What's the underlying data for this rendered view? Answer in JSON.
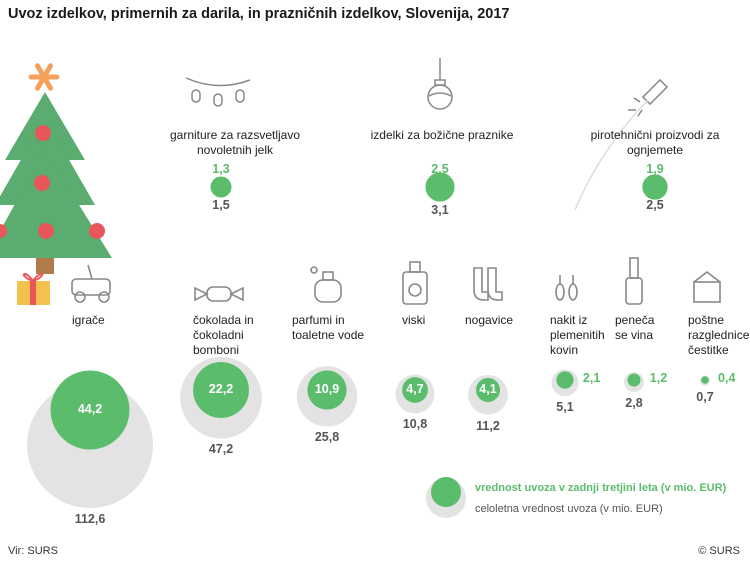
{
  "title": "Uvoz izdelkov, primernih za darila, in prazničnih izdelkov, Slovenija, 2017",
  "source": "Vir: SURS",
  "copyright": "© SURS",
  "colors": {
    "green": "#5bbd6b",
    "grey": "#e3e3e3",
    "tree": "#5aac70",
    "ball": "#e8565a",
    "star": "#f5a05b"
  },
  "legend": {
    "green": "vrednost uvoza v zadnji tretjini leta (v mio. EUR)",
    "grey": "celoletna vrednost uvoza (v mio. EUR)"
  },
  "chart_data": {
    "type": "bubble",
    "title": "Uvoz izdelkov, primernih za darila, in prazničnih izdelkov, Slovenija, 2017",
    "series": [
      {
        "name": "vrednost uvoza v zadnji tretjini leta (v mio. EUR)",
        "color": "#5bbd6b"
      },
      {
        "name": "celoletna vrednost uvoza (v mio. EUR)",
        "color": "#e3e3e3"
      }
    ],
    "top_items": [
      {
        "label": "garniture za razsvetljavo novoletnih jelk",
        "last_third": 1.3,
        "annual": 1.5,
        "icon": "lights-icon"
      },
      {
        "label": "izdelki za božične praznike",
        "last_third": 2.5,
        "annual": 3.1,
        "icon": "ornament-icon"
      },
      {
        "label": "pirotehnični proizvodi za ognjemete",
        "last_third": 1.9,
        "annual": 2.5,
        "icon": "firework-icon"
      }
    ],
    "items": [
      {
        "label": "igrače",
        "last_third": 44.2,
        "annual": 112.6,
        "icon": "toy-car-icon"
      },
      {
        "label": "čokolada in čokoladni bomboni",
        "last_third": 22.2,
        "annual": 47.2,
        "icon": "candy-icon"
      },
      {
        "label": "parfumi in toaletne vode",
        "last_third": 10.9,
        "annual": 25.8,
        "icon": "perfume-icon"
      },
      {
        "label": "viski",
        "last_third": 4.7,
        "annual": 10.8,
        "icon": "whisky-icon"
      },
      {
        "label": "nogavice",
        "last_third": 4.1,
        "annual": 11.2,
        "icon": "socks-icon"
      },
      {
        "label": "nakit iz plemenitih kovin",
        "last_third": 2.1,
        "annual": 5.1,
        "icon": "earrings-icon"
      },
      {
        "label": "peneča se vina",
        "last_third": 1.2,
        "annual": 2.8,
        "icon": "champagne-icon"
      },
      {
        "label": "poštne razglednice, čestitke",
        "last_third": 0.4,
        "annual": 0.7,
        "icon": "envelope-icon"
      }
    ]
  }
}
